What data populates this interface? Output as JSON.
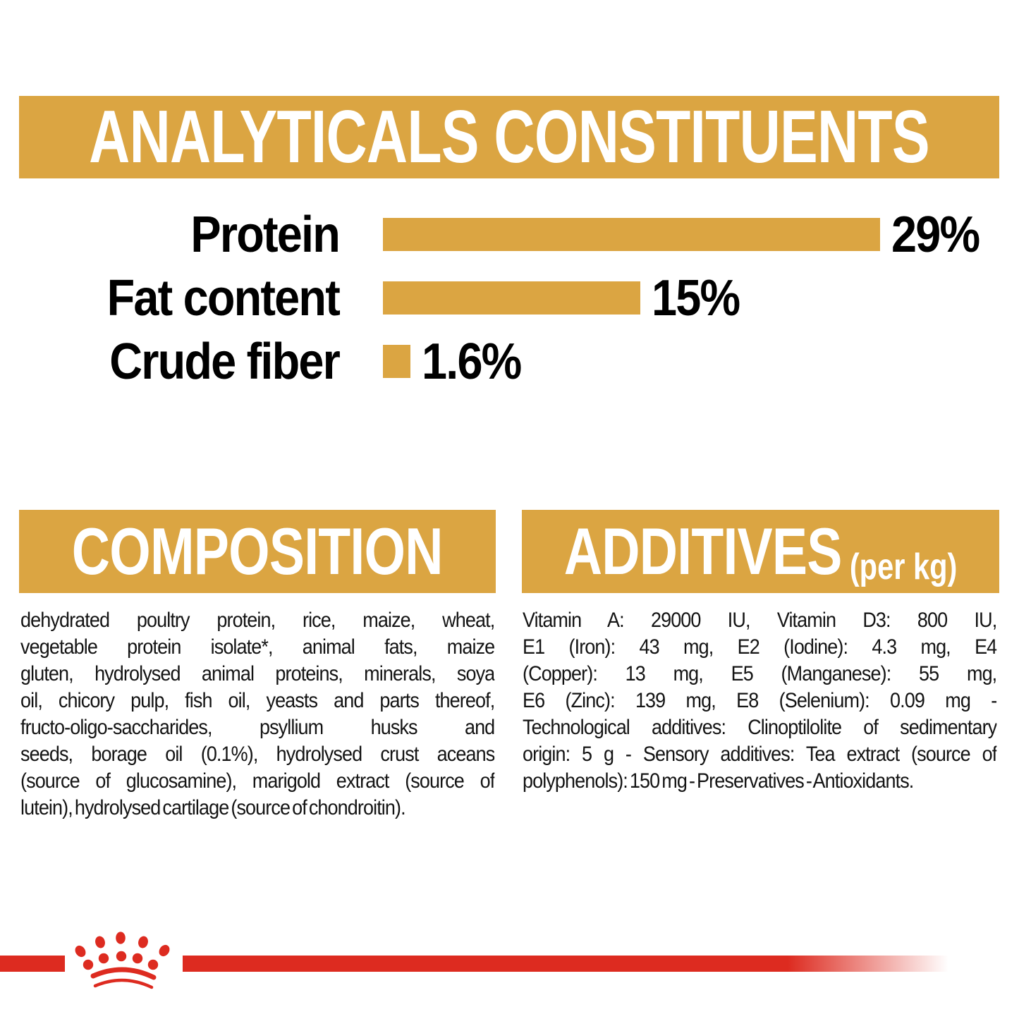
{
  "colors": {
    "gold": "#DBA542",
    "red": "#DD2B20",
    "text": "#141414",
    "banner_text": "#ffffff"
  },
  "chart_data": {
    "type": "bar",
    "orientation": "horizontal",
    "title": "ANALYTICALS CONSTITUENTS",
    "categories": [
      "Protein",
      "Fat content",
      "Crude fiber"
    ],
    "values": [
      29,
      15,
      1.6
    ],
    "value_labels": [
      "29%",
      "15%",
      "1.6%"
    ],
    "xlim": [
      0,
      29
    ],
    "bar_color": "#DBA542",
    "grid": false,
    "legend": false
  },
  "composition": {
    "heading": "COMPOSITION",
    "lines": [
      "dehydrated poultry protein, rice, maize, wheat,",
      "vegetable protein isolate*, animal fats, maize",
      "gluten, hydrolysed animal proteins, minerals, soya",
      "oil, chicory pulp, fish oil, yeasts and parts thereof,",
      "fructo-oligo-saccharides, psyllium husks and",
      "seeds, borage oil (0.1%), hydrolysed crust aceans",
      "(source of glucosamine), marigold extract (source of",
      "lutein), hydrolysed cartilage (source of chondroitin)."
    ]
  },
  "additives": {
    "heading": "ADDITIVES",
    "heading_suffix": "(per kg)",
    "lines": [
      "Vitamin A: 29000 IU, Vitamin D3: 800 IU,",
      "E1 (Iron): 43 mg, E2 (Iodine): 4.3 mg, E4",
      "(Copper): 13 mg, E5 (Manganese): 55 mg,",
      "E6 (Zinc): 139 mg, E8 (Selenium): 0.09 mg -",
      "Technological additives: Clinoptilolite of sedimentary",
      "origin: 5 g - Sensory additives: Tea extract (source of",
      "polyphenols): 150 mg - Preservatives - Antioxidants."
    ]
  },
  "footer": {
    "logo_icon": "crown-paw-logo-icon"
  }
}
